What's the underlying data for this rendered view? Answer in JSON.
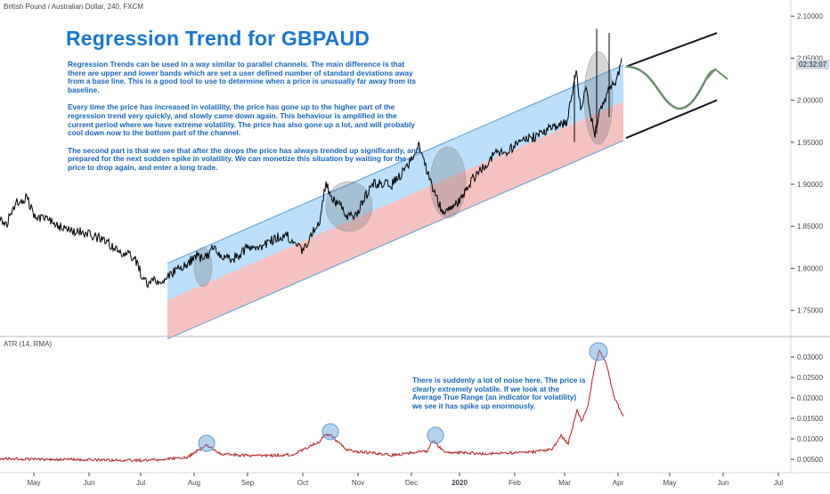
{
  "header": {
    "symbol": "British Pound / Australian Dollar, 240, FXCM",
    "atr_label": "ATR (14, RMA)",
    "price_tag": "02:32:07"
  },
  "annotations": {
    "title": "Regression Trend for GBPAUD",
    "paragraphs": [
      "Regression Trends can be used in a way similar to parallel channels. The main difference is that there are upper and lower bands which are set a user defined number of standard deviations away from a base line. This is a good tool to use to determine when a price is unusually far away from its baseline.",
      "Every time the price has increased in volatility, the price has gone up to the higher part of the regression trend very quickly, and slowly came down again. This behaviour is amplified in the current period where we have extreme volatility. The price has also gone up a lot, and will probably cool down now to the bottom part of the channel.",
      "The second part is that we see that after the drops the price has always trended up significantly, and prepared for the next sudden spike in volatility. We can monetize this situation by waiting for the price to drop again, and enter a long trade."
    ],
    "atr_note": "There is suddenly a lot of noise here. The price is clearly extremely volatile. If we look at the Average True Range (an indicator for volatility) we see it has spike up enormously."
  },
  "colors": {
    "price": "#000000",
    "atr": "#b71c1c",
    "upper_band": "#90caf9",
    "lower_band": "#ef9a9a",
    "highlight": "#5b9bd5",
    "title": "#1976d2",
    "projection": "#6b8e6b"
  },
  "chart_data": [
    {
      "type": "line",
      "name": "price",
      "y_ticks": [
        "2.10000",
        "2.05000",
        "2.00000",
        "1.95000",
        "1.90000",
        "1.85000",
        "1.80000",
        "1.75000"
      ],
      "ylim": [
        1.72,
        2.115
      ],
      "x_ticks": [
        "May",
        "Jun",
        "Jul",
        "Aug",
        "Sep",
        "Oct",
        "Nov",
        "Dec",
        "2020",
        "Feb",
        "Mar",
        "Apr",
        "May",
        "Jun",
        "Jul"
      ],
      "x": [
        0,
        7,
        14,
        21,
        30,
        40,
        50,
        60,
        70,
        82,
        92,
        104,
        114,
        124,
        131,
        138,
        145,
        152,
        160,
        166,
        173,
        180,
        190,
        200,
        210,
        220,
        230,
        240,
        250,
        260,
        270,
        280,
        290,
        300,
        310,
        320,
        330,
        340,
        350,
        360,
        366,
        372,
        380,
        390,
        400,
        410,
        420,
        430,
        440,
        450,
        460,
        470,
        480,
        490,
        497,
        507,
        517,
        527,
        537,
        547,
        557,
        567,
        577,
        587,
        597,
        607,
        617,
        627,
        637,
        647,
        652,
        658,
        663,
        668,
        673,
        678,
        683,
        688,
        692,
        698
      ],
      "values": [
        1.862,
        1.85,
        1.872,
        1.88,
        1.885,
        1.858,
        1.862,
        1.855,
        1.848,
        1.842,
        1.845,
        1.838,
        1.835,
        1.828,
        1.822,
        1.818,
        1.815,
        1.81,
        1.79,
        1.782,
        1.785,
        1.783,
        1.79,
        1.8,
        1.805,
        1.815,
        1.812,
        1.825,
        1.815,
        1.81,
        1.818,
        1.826,
        1.82,
        1.83,
        1.836,
        1.84,
        1.833,
        1.82,
        1.84,
        1.86,
        1.905,
        1.882,
        1.878,
        1.86,
        1.865,
        1.885,
        1.9,
        1.9,
        1.9,
        1.912,
        1.925,
        1.945,
        1.915,
        1.885,
        1.866,
        1.875,
        1.88,
        1.9,
        1.915,
        1.925,
        1.94,
        1.935,
        1.945,
        1.95,
        1.955,
        1.96,
        1.968,
        1.97,
        1.975,
        2.035,
        1.99,
        2.02,
        1.985,
        1.96,
        1.985,
        2.0,
        2.01,
        2.022,
        2.02,
        2.05
      ]
    },
    {
      "type": "line",
      "name": "ATR (14, RMA)",
      "y_ticks": [
        "0.03000",
        "0.02500",
        "0.02000",
        "0.01500",
        "0.01000",
        "0.00500"
      ],
      "ylim": [
        0.0024,
        0.0348
      ],
      "x": [
        0,
        50,
        100,
        150,
        180,
        210,
        225,
        232,
        240,
        250,
        290,
        330,
        360,
        365,
        372,
        378,
        390,
        440,
        480,
        486,
        492,
        500,
        540,
        590,
        620,
        630,
        638,
        648,
        653,
        660,
        668,
        673,
        680,
        690,
        700
      ],
      "values": [
        0.0052,
        0.005,
        0.0049,
        0.0047,
        0.0049,
        0.0055,
        0.0075,
        0.0085,
        0.0073,
        0.0063,
        0.0058,
        0.0062,
        0.0095,
        0.0112,
        0.0108,
        0.0095,
        0.0072,
        0.006,
        0.007,
        0.0098,
        0.0082,
        0.0068,
        0.0064,
        0.0066,
        0.0075,
        0.0108,
        0.0088,
        0.017,
        0.0145,
        0.018,
        0.028,
        0.0315,
        0.029,
        0.02,
        0.0155
      ]
    }
  ]
}
